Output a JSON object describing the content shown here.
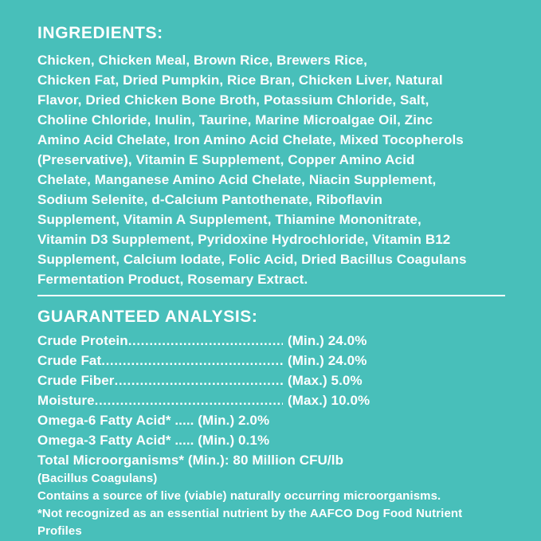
{
  "page": {
    "background_color": "#48bfba",
    "text_color": "#ffffff"
  },
  "ingredients": {
    "heading": "INGREDIENTS:",
    "lines": [
      "Chicken, Chicken Meal, Brown Rice, Brewers Rice,",
      "Chicken Fat, Dried Pumpkin, Rice Bran, Chicken Liver, Natural",
      "Flavor, Dried Chicken Bone Broth, Potassium Chloride, Salt,",
      "Choline Chloride, Inulin, Taurine, Marine Microalgae Oil, Zinc",
      "Amino Acid Chelate, Iron Amino Acid Chelate, Mixed Tocopherols",
      "(Preservative), Vitamin E Supplement, Copper Amino Acid",
      "Chelate, Manganese Amino Acid Chelate, Niacin Supplement,",
      "Sodium Selenite, d-Calcium Pantothenate, Riboflavin",
      "Supplement, Vitamin A Supplement, Thiamine Mononitrate,",
      "Vitamin D3 Supplement, Pyridoxine Hydrochloride, Vitamin B12",
      "Supplement, Calcium Iodate, Folic Acid, Dried Bacillus Coagulans",
      "Fermentation Product, Rosemary Extract."
    ]
  },
  "analysis": {
    "heading": "GUARANTEED ANALYSIS:",
    "leader_dots": "............................................................................................",
    "rows": [
      {
        "label": "Crude Protein",
        "value": "(Min.) 24.0%"
      },
      {
        "label": "Crude Fat ",
        "value": "(Min.) 24.0%"
      },
      {
        "label": "Crude Fiber",
        "value": "(Max.) 5.0%"
      },
      {
        "label": "Moisture ",
        "value": "(Max.) 10.0%"
      }
    ],
    "inline_rows": [
      "Omega-6 Fatty Acid* ..... (Min.) 2.0%",
      "Omega-3 Fatty Acid* ..... (Min.) 0.1%",
      "Total Microorganisms* (Min.): 80 Million CFU/lb"
    ],
    "notes": [
      "(Bacillus Coagulans)",
      "Contains a source of live (viable) naturally occurring microorganisms.",
      "*Not recognized as an essential nutrient by the AAFCO Dog Food Nutrient",
      "Profiles"
    ]
  }
}
